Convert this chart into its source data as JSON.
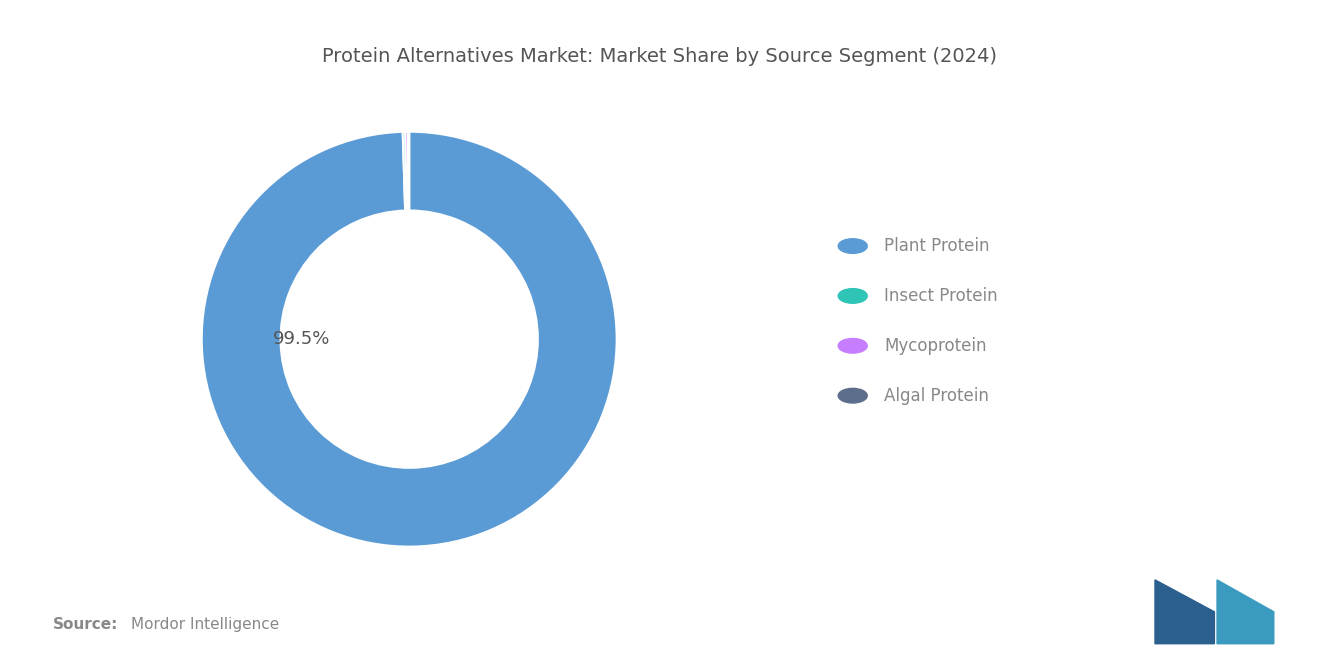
{
  "title": "Protein Alternatives Market: Market Share by Source Segment (2024)",
  "title_fontsize": 14,
  "title_color": "#555555",
  "segments": [
    "Plant Protein",
    "Insect Protein",
    "Mycoprotein",
    "Algal Protein"
  ],
  "values": [
    99.5,
    0.2,
    0.2,
    0.1
  ],
  "colors": [
    "#5B9BD5",
    "#2EC4B6",
    "#C77DFF",
    "#5C6E8B"
  ],
  "label_text": "99.5%",
  "label_fontsize": 13,
  "label_color": "#555555",
  "legend_fontsize": 12,
  "legend_label_color": "#888888",
  "source_bold": "Source:",
  "source_text": "  Mordor Intelligence",
  "source_fontsize": 11,
  "source_color": "#888888",
  "background_color": "#FFFFFF",
  "donut_width": 0.38
}
